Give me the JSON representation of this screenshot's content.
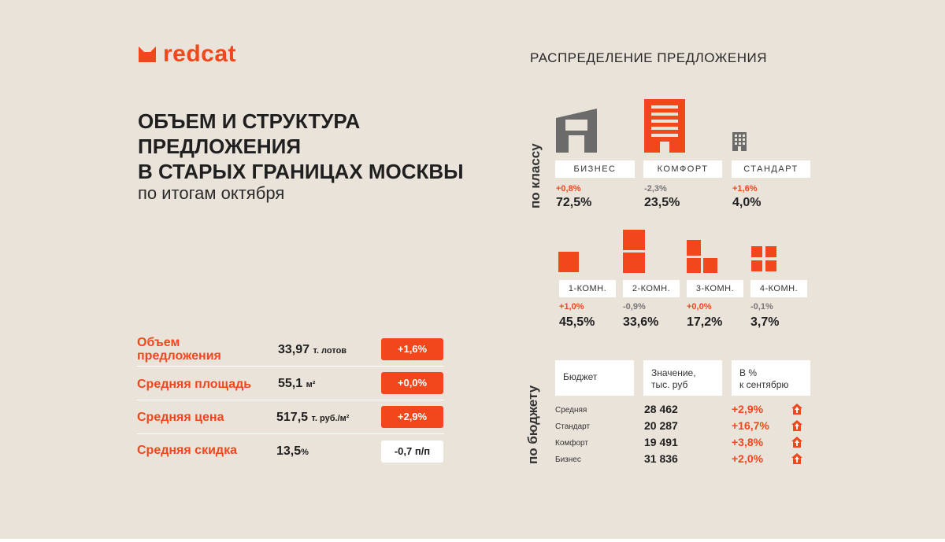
{
  "brand": {
    "name": "redcat",
    "accent": "#f2461d",
    "grey": "#6b6b6b",
    "background": "#e9e3da"
  },
  "title": {
    "lines": [
      "ОБЪЕМ И СТРУКТУРА",
      "ПРЕДЛОЖЕНИЯ",
      "В СТАРЫХ ГРАНИЦАХ МОСКВЫ"
    ],
    "subtitle": "по итогам октября"
  },
  "distribution": {
    "heading": "РАСПРЕДЕЛЕНИЕ ПРЕДЛОЖЕНИЯ",
    "by_class_label": "по классу",
    "classes": [
      {
        "name": "БИЗНЕС",
        "delta": "+0,8%",
        "share": "72,5%",
        "icon": "business-building-icon"
      },
      {
        "name": "КОМФОРТ",
        "delta": "-2,3%",
        "share": "23,5%",
        "icon": "comfort-building-icon"
      },
      {
        "name": "СТАНДАРТ",
        "delta": "+1,6%",
        "share": "4,0%",
        "icon": "standard-building-icon"
      }
    ],
    "rooms": [
      {
        "name": "1-КОМН.",
        "delta": "+1,0%",
        "share": "45,5%",
        "icon": "one-room-icon"
      },
      {
        "name": "2-КОМН.",
        "delta": "-0,9%",
        "share": "33,6%",
        "icon": "two-room-icon"
      },
      {
        "name": "3-КОМН.",
        "delta": "+0,0%",
        "share": "17,2%",
        "icon": "three-room-icon"
      },
      {
        "name": "4-КОМН.",
        "delta": "-0,1%",
        "share": "3,7%",
        "icon": "four-room-icon"
      }
    ]
  },
  "metrics": [
    {
      "label_lines": [
        "Объем",
        "предложения"
      ],
      "value": "33,97",
      "unit": "т. лотов",
      "change": "+1,6%"
    },
    {
      "label_lines": [
        "Средняя площадь"
      ],
      "value": "55,1",
      "unit": "м²",
      "change": "+0,0%"
    },
    {
      "label_lines": [
        "Средняя цена"
      ],
      "value": "517,5",
      "unit": "т. руб./м²",
      "change": "+2,9%"
    },
    {
      "label_lines": [
        "Средняя скидка"
      ],
      "value": "13,5",
      "unit": "%",
      "change": "-0,7 п/п"
    }
  ],
  "budget": {
    "vertical_label": "по бюджету",
    "headers": [
      [
        "Бюджет"
      ],
      [
        "Значение,",
        "тыс. руб"
      ],
      [
        "В %",
        "к сентябрю"
      ]
    ],
    "rows": [
      {
        "name": "Средняя",
        "value": "28 462",
        "change": "+2,9%"
      },
      {
        "name": "Стандарт",
        "value": "20 287",
        "change": "+16,7%"
      },
      {
        "name": "Комфорт",
        "value": "19 491",
        "change": "+3,8%"
      },
      {
        "name": "Бизнес",
        "value": "31 836",
        "change": "+2,0%"
      }
    ]
  }
}
